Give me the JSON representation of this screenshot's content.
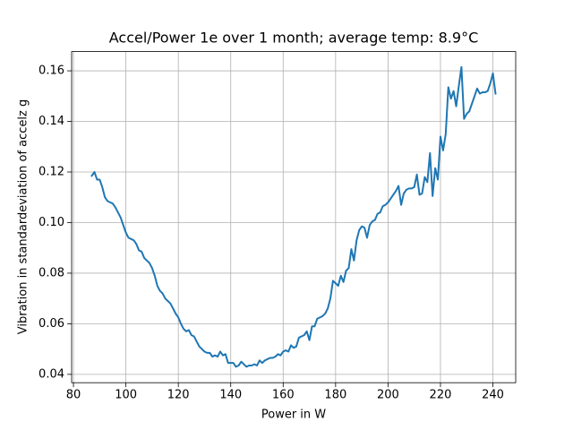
{
  "chart_data": {
    "type": "line",
    "title": "Accel/Power 1e over 1 month; average temp: 8.9°C",
    "x_label": "Power in W",
    "y_label": "Vibration in standardeviation of accelz g",
    "x": [
      87,
      88,
      89,
      90,
      91,
      92,
      93,
      94,
      95,
      96,
      97,
      98,
      99,
      100,
      101,
      102,
      103,
      104,
      105,
      106,
      107,
      108,
      109,
      110,
      111,
      112,
      113,
      114,
      115,
      116,
      117,
      118,
      119,
      120,
      121,
      122,
      123,
      124,
      125,
      126,
      127,
      128,
      129,
      130,
      131,
      132,
      133,
      134,
      135,
      136,
      137,
      138,
      139,
      140,
      141,
      142,
      143,
      144,
      145,
      146,
      147,
      148,
      149,
      150,
      151,
      152,
      153,
      154,
      155,
      156,
      157,
      158,
      159,
      160,
      161,
      162,
      163,
      164,
      165,
      166,
      167,
      168,
      169,
      170,
      171,
      172,
      173,
      174,
      175,
      176,
      177,
      178,
      179,
      180,
      181,
      182,
      183,
      184,
      185,
      186,
      187,
      188,
      189,
      190,
      191,
      192,
      193,
      194,
      195,
      196,
      197,
      198,
      199,
      200,
      201,
      202,
      203,
      204,
      205,
      206,
      207,
      208,
      209,
      210,
      211,
      212,
      213,
      214,
      215,
      216,
      217,
      218,
      219,
      220,
      221,
      222,
      223,
      224,
      225,
      226,
      227,
      228,
      229,
      230,
      231,
      232,
      233,
      234,
      235,
      236,
      237,
      238,
      239,
      240,
      241
    ],
    "series": [
      {
        "color": "#1f77b4",
        "values": [
          0.1185,
          0.12,
          0.117,
          0.117,
          0.114,
          0.11,
          0.1085,
          0.108,
          0.1075,
          0.106,
          0.104,
          0.102,
          0.099,
          0.096,
          0.094,
          0.0935,
          0.093,
          0.0915,
          0.089,
          0.0885,
          0.086,
          0.085,
          0.084,
          0.082,
          0.079,
          0.075,
          0.073,
          0.072,
          0.07,
          0.069,
          0.068,
          0.066,
          0.064,
          0.0625,
          0.06,
          0.058,
          0.057,
          0.0575,
          0.0555,
          0.055,
          0.053,
          0.051,
          0.05,
          0.049,
          0.0485,
          0.0485,
          0.047,
          0.0475,
          0.047,
          0.049,
          0.0475,
          0.048,
          0.0445,
          0.0445,
          0.0445,
          0.043,
          0.0435,
          0.045,
          0.044,
          0.043,
          0.0435,
          0.0435,
          0.044,
          0.0435,
          0.0455,
          0.0445,
          0.0455,
          0.046,
          0.0465,
          0.0465,
          0.047,
          0.048,
          0.0475,
          0.049,
          0.0495,
          0.049,
          0.0515,
          0.0505,
          0.051,
          0.0545,
          0.055,
          0.0555,
          0.057,
          0.0535,
          0.059,
          0.059,
          0.062,
          0.0625,
          0.063,
          0.064,
          0.066,
          0.07,
          0.077,
          0.076,
          0.075,
          0.079,
          0.0765,
          0.081,
          0.082,
          0.0895,
          0.085,
          0.093,
          0.097,
          0.0985,
          0.098,
          0.094,
          0.099,
          0.1005,
          0.101,
          0.1035,
          0.104,
          0.1065,
          0.107,
          0.108,
          0.1095,
          0.111,
          0.1125,
          0.1145,
          0.107,
          0.1115,
          0.113,
          0.1135,
          0.1135,
          0.114,
          0.119,
          0.111,
          0.1115,
          0.118,
          0.116,
          0.1275,
          0.1105,
          0.1215,
          0.117,
          0.134,
          0.1285,
          0.135,
          0.1535,
          0.149,
          0.152,
          0.146,
          0.154,
          0.1615,
          0.141,
          0.143,
          0.144,
          0.147,
          0.15,
          0.153,
          0.151,
          0.1515,
          0.1515,
          0.152,
          0.155,
          0.159,
          0.151
        ]
      }
    ],
    "xlim": [
      79.3,
      248.7
    ],
    "ylim": [
      0.0367,
      0.1676
    ],
    "xticks": [
      80,
      100,
      120,
      140,
      160,
      180,
      200,
      220,
      240
    ],
    "yticks": [
      0.04,
      0.06,
      0.08,
      {
        "value": 0.1,
        "label": "0.10"
      },
      0.12,
      0.14,
      0.16
    ],
    "grid": true
  }
}
